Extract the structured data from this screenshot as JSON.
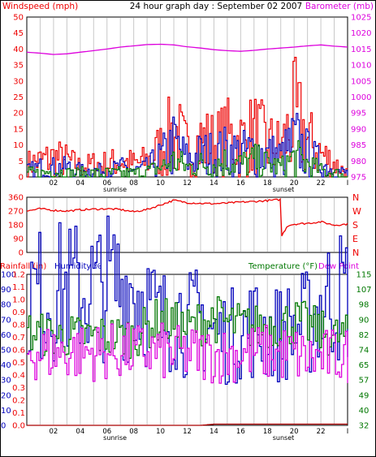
{
  "header": {
    "title": "24 hour graph day : September 02 2007",
    "left_label": "Windspeed (mph)",
    "right_label": "Barometer (mb)"
  },
  "colors": {
    "background": "#ffffff",
    "frame": "#000000",
    "grid": "#c8c8c8",
    "red": "#ee0000",
    "blue": "#0000bb",
    "green": "#007700",
    "magenta": "#dd00dd",
    "darkred": "#aa0000"
  },
  "x_axis": {
    "hour_labels": [
      "02",
      "04",
      "06",
      "08",
      "10",
      "12",
      "14",
      "16",
      "18",
      "20",
      "22",
      "I"
    ],
    "sunrise_label": "sunrise",
    "sunset_label": "sunset"
  },
  "chart_data": [
    {
      "type": "line",
      "title": "24 hour graph day : September 02 2007",
      "left_axis": {
        "label": "Windspeed (mph)",
        "ticks": [
          "0",
          "5",
          "10",
          "15",
          "20",
          "25",
          "30",
          "35",
          "40",
          "45",
          "50"
        ],
        "ylim": [
          0,
          50
        ]
      },
      "right_axis": {
        "label": "Barometer (mb)",
        "ticks": [
          "975",
          "980",
          "985",
          "990",
          "995",
          "1000",
          "1005",
          "1010",
          "1015",
          "1020",
          "1025"
        ],
        "ylim": [
          975,
          1025
        ]
      },
      "x": [
        0,
        1,
        2,
        3,
        4,
        5,
        6,
        7,
        8,
        9,
        10,
        11,
        12,
        13,
        14,
        15,
        16,
        17,
        18,
        19,
        20,
        21,
        22,
        23,
        24
      ],
      "series": [
        {
          "name": "Windspeed (mph)",
          "axis": "left",
          "color": "red",
          "values": [
            4,
            5,
            6,
            5,
            3,
            4,
            4,
            5,
            4,
            5,
            9,
            14,
            8,
            11,
            10,
            12,
            11,
            13,
            10,
            9,
            18,
            11,
            7,
            4,
            1
          ]
        },
        {
          "axis": "left",
          "color": "blue",
          "values": [
            2,
            3,
            3,
            3,
            2,
            2,
            2,
            3,
            2,
            3,
            6,
            10,
            5,
            7,
            7,
            8,
            7,
            8,
            7,
            6,
            11,
            7,
            4,
            2,
            1
          ]
        },
        {
          "axis": "left",
          "color": "green",
          "values": [
            1,
            1,
            2,
            1,
            1,
            1,
            1,
            1,
            1,
            2,
            3,
            5,
            3,
            4,
            4,
            5,
            4,
            5,
            4,
            3,
            6,
            4,
            2,
            1,
            0
          ]
        },
        {
          "name": "Barometer (mb)",
          "axis": "right",
          "color": "magenta",
          "values": [
            1014,
            1013.7,
            1013.3,
            1013.5,
            1014,
            1014.5,
            1015,
            1015.6,
            1016,
            1016.4,
            1016.5,
            1016.3,
            1015.7,
            1015.3,
            1014.8,
            1014.5,
            1014.3,
            1014.6,
            1015,
            1015.3,
            1015.6,
            1016,
            1016.3,
            1015.9,
            1015.6
          ]
        }
      ]
    },
    {
      "type": "line",
      "left_axis": {
        "ticks": [
          "0",
          "90",
          "180",
          "270",
          "360"
        ],
        "ylim": [
          0,
          360
        ]
      },
      "right_axis": {
        "ticks": [
          "N",
          "E",
          "S",
          "W",
          "N"
        ]
      },
      "x": [
        0,
        1,
        2,
        3,
        4,
        5,
        6,
        7,
        8,
        9,
        10,
        11,
        12,
        13,
        14,
        15,
        16,
        17,
        18,
        19,
        19.02,
        19.5,
        20,
        21,
        22,
        23,
        24
      ],
      "series": [
        {
          "axis": "left",
          "color": "red",
          "values": [
            270,
            285,
            275,
            270,
            278,
            282,
            285,
            280,
            265,
            280,
            310,
            340,
            325,
            320,
            318,
            322,
            328,
            332,
            338,
            345,
            100,
            175,
            185,
            190,
            200,
            178,
            185
          ]
        }
      ]
    },
    {
      "type": "line",
      "left_labels": [
        "Rainfall (in)",
        "Humidity %"
      ],
      "right_labels": [
        "Temperature (°F)",
        "Dew Point"
      ],
      "rainfall_axis": {
        "ticks": [
          "0.0",
          "0.1",
          "0.2",
          "0.3",
          "0.4",
          "0.5",
          "0.6",
          "0.7",
          "0.8",
          "0.9",
          "1.0",
          "1.1",
          "1.2"
        ],
        "ylim": [
          0,
          1.2
        ]
      },
      "humidity_axis": {
        "ticks": [
          "0",
          "10",
          "20",
          "30",
          "40",
          "50",
          "60",
          "70",
          "80",
          "90",
          "100"
        ],
        "ylim": [
          0,
          100
        ]
      },
      "temperature_axis": {
        "ticks": [
          "32",
          "40",
          "49",
          "57",
          "65",
          "74",
          "82",
          "90",
          "98",
          "107",
          "115"
        ],
        "ylim": [
          32,
          115
        ]
      },
      "x": [
        0,
        1,
        2,
        3,
        4,
        5,
        6,
        7,
        8,
        9,
        10,
        11,
        12,
        13,
        14,
        15,
        16,
        17,
        18,
        19,
        20,
        21,
        22,
        23,
        24
      ],
      "series": [
        {
          "name": "Humidity %",
          "axis": "humidity",
          "color": "blue",
          "values": [
            87,
            86,
            88,
            89,
            89,
            90,
            92,
            93,
            92,
            80,
            66,
            78,
            66,
            71,
            61,
            58,
            63,
            65,
            61,
            61,
            65,
            68,
            80,
            86,
            86
          ]
        },
        {
          "name": "Temperature (°F)",
          "axis": "temperature",
          "color": "green",
          "values": [
            83,
            82,
            81,
            81,
            81,
            81,
            81,
            81,
            81,
            86,
            91,
            87,
            85,
            89,
            91,
            88,
            87,
            86,
            87,
            88,
            89,
            87,
            83,
            81,
            81
          ]
        },
        {
          "name": "Dew Point",
          "axis": "temperature",
          "color": "magenta",
          "values": [
            72.5,
            72.3,
            72.0,
            72.0,
            72.1,
            72.3,
            72.4,
            72.4,
            72.5,
            72.6,
            72.6,
            71.0,
            71.6,
            71.0,
            70.6,
            70.9,
            71.6,
            72.0,
            71.9,
            71.4,
            71.3,
            68.4,
            69.5,
            70.2,
            70.3
          ]
        },
        {
          "name": "Rainfall (in)",
          "axis": "rainfall",
          "color": "darkred",
          "values": [
            0,
            0,
            0,
            0,
            0,
            0,
            0,
            0,
            0,
            0,
            0,
            0,
            0,
            0,
            0.01,
            0.01,
            0.01,
            0.01,
            0.01,
            0.01,
            0.01,
            0.01,
            0.01,
            0.01,
            0.01
          ]
        }
      ]
    }
  ]
}
